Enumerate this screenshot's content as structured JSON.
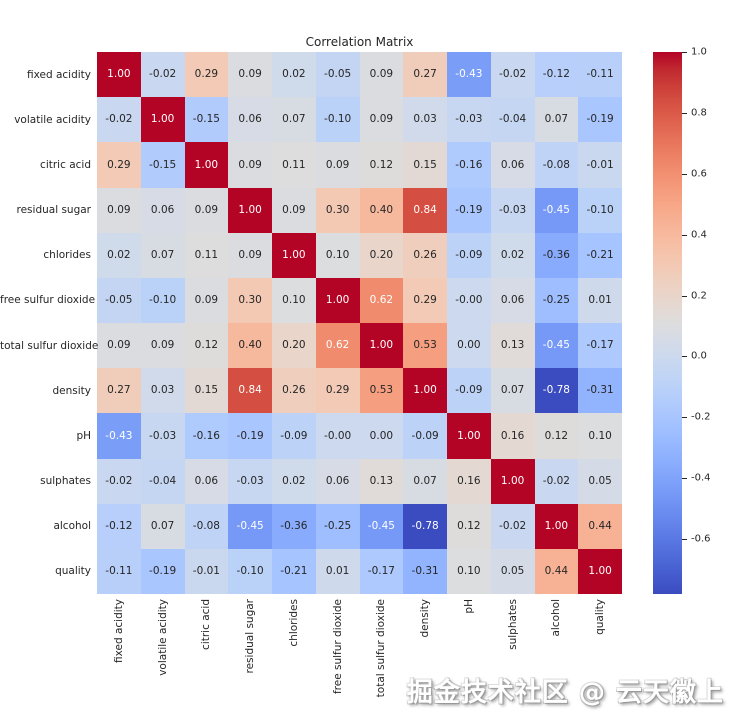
{
  "figure": {
    "title": "Correlation Matrix",
    "watermark": "掘金技术社区 @ 云天徽上",
    "background_color": "#ffffff",
    "text_color": "#262626"
  },
  "chart_data": {
    "type": "heatmap",
    "title": "Correlation Matrix",
    "categories": [
      "fixed acidity",
      "volatile acidity",
      "citric acid",
      "residual sugar",
      "chlorides",
      "free sulfur dioxide",
      "total sulfur dioxide",
      "density",
      "pH",
      "sulphates",
      "alcohol",
      "quality"
    ],
    "matrix": [
      [
        "1.00",
        "-0.02",
        "0.29",
        "0.09",
        "0.02",
        "-0.05",
        "0.09",
        "0.27",
        "-0.43",
        "-0.02",
        "-0.12",
        "-0.11"
      ],
      [
        "-0.02",
        "1.00",
        "-0.15",
        "0.06",
        "0.07",
        "-0.10",
        "0.09",
        "0.03",
        "-0.03",
        "-0.04",
        "0.07",
        "-0.19"
      ],
      [
        "0.29",
        "-0.15",
        "1.00",
        "0.09",
        "0.11",
        "0.09",
        "0.12",
        "0.15",
        "-0.16",
        "0.06",
        "-0.08",
        "-0.01"
      ],
      [
        "0.09",
        "0.06",
        "0.09",
        "1.00",
        "0.09",
        "0.30",
        "0.40",
        "0.84",
        "-0.19",
        "-0.03",
        "-0.45",
        "-0.10"
      ],
      [
        "0.02",
        "0.07",
        "0.11",
        "0.09",
        "1.00",
        "0.10",
        "0.20",
        "0.26",
        "-0.09",
        "0.02",
        "-0.36",
        "-0.21"
      ],
      [
        "-0.05",
        "-0.10",
        "0.09",
        "0.30",
        "0.10",
        "1.00",
        "0.62",
        "0.29",
        "-0.00",
        "0.06",
        "-0.25",
        "0.01"
      ],
      [
        "0.09",
        "0.09",
        "0.12",
        "0.40",
        "0.20",
        "0.62",
        "1.00",
        "0.53",
        "0.00",
        "0.13",
        "-0.45",
        "-0.17"
      ],
      [
        "0.27",
        "0.03",
        "0.15",
        "0.84",
        "0.26",
        "0.29",
        "0.53",
        "1.00",
        "-0.09",
        "0.07",
        "-0.78",
        "-0.31"
      ],
      [
        "-0.43",
        "-0.03",
        "-0.16",
        "-0.19",
        "-0.09",
        "-0.00",
        "0.00",
        "-0.09",
        "1.00",
        "0.16",
        "0.12",
        "0.10"
      ],
      [
        "-0.02",
        "-0.04",
        "0.06",
        "-0.03",
        "0.02",
        "0.06",
        "0.13",
        "0.07",
        "0.16",
        "1.00",
        "-0.02",
        "0.05"
      ],
      [
        "-0.12",
        "0.07",
        "-0.08",
        "-0.45",
        "-0.36",
        "-0.25",
        "-0.45",
        "-0.78",
        "0.12",
        "-0.02",
        "1.00",
        "0.44"
      ],
      [
        "-0.11",
        "-0.19",
        "-0.01",
        "-0.10",
        "-0.21",
        "0.01",
        "-0.17",
        "-0.31",
        "0.10",
        "0.05",
        "0.44",
        "1.00"
      ]
    ],
    "colormap": "coolwarm",
    "colormap_endpoints": {
      "negative": "#3b4cc0",
      "mid": "#dddddd",
      "positive": "#b40426"
    },
    "vmin": -0.78,
    "vmax": 1.0,
    "colorbar_ticks": [
      "1.0",
      "0.8",
      "0.6",
      "0.4",
      "0.2",
      "0.0",
      "-0.2",
      "-0.4",
      "-0.6"
    ],
    "colorbar_position": "right",
    "annotations": true,
    "grid": false
  }
}
